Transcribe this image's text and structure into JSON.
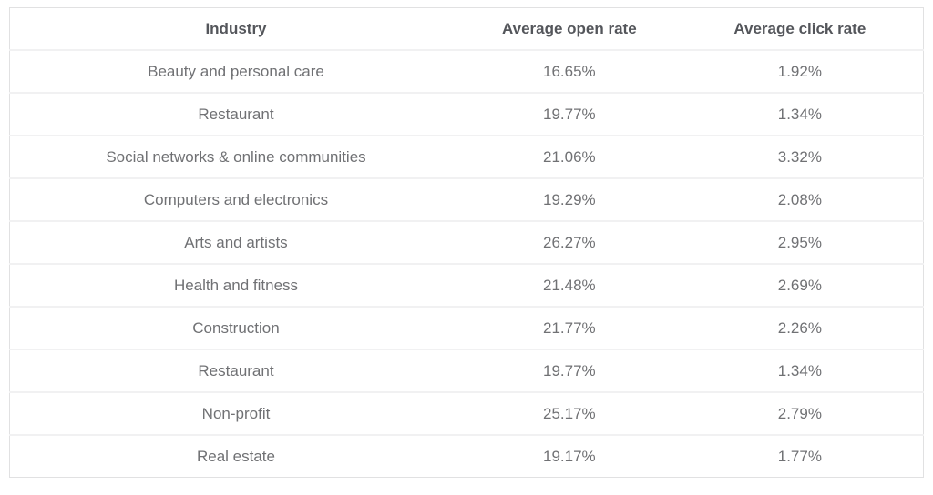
{
  "chart_data": {
    "type": "table",
    "columns": [
      "Industry",
      "Average open rate",
      "Average click rate"
    ],
    "rows": [
      [
        "Beauty and personal care",
        "16.65%",
        "1.92%"
      ],
      [
        "Restaurant",
        "19.77%",
        "1.34%"
      ],
      [
        "Social networks & online communities",
        "21.06%",
        "3.32%"
      ],
      [
        "Computers and electronics",
        "19.29%",
        "2.08%"
      ],
      [
        "Arts and artists",
        "26.27%",
        "2.95%"
      ],
      [
        "Health and fitness",
        "21.48%",
        "2.69%"
      ],
      [
        "Construction",
        "21.77%",
        "2.26%"
      ],
      [
        "Restaurant",
        "19.77%",
        "1.34%"
      ],
      [
        "Non-profit",
        "25.17%",
        "2.79%"
      ],
      [
        "Real estate",
        "19.17%",
        "1.77%"
      ]
    ]
  },
  "colors": {
    "header_text": "#54565b",
    "body_text": "#707174",
    "row_separator": "#f1f1f2",
    "outer_border": "#e1e1e2",
    "background": "#ffffff"
  }
}
